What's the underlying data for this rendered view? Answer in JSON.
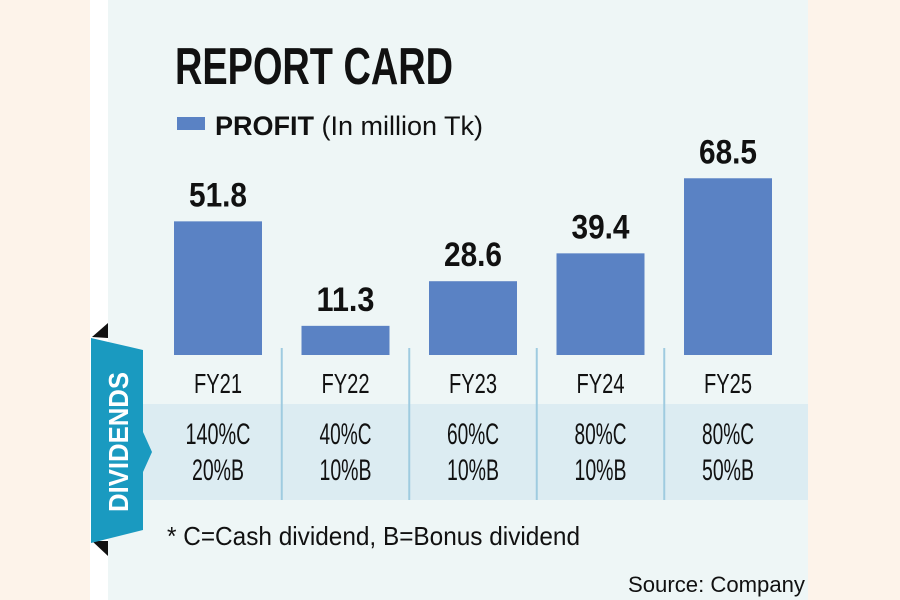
{
  "colors": {
    "bar": "#5a82c4",
    "panel": "#eef6f6",
    "band": "#dcecf2",
    "ribbon": "#1a9ac0",
    "outer": "#fdf3ea"
  },
  "chart_data": {
    "type": "bar",
    "title": "REPORT CARD",
    "legend": {
      "bold": "PROFIT",
      "rest": " (In million Tk)"
    },
    "categories": [
      "FY21",
      "FY22",
      "FY23",
      "FY24",
      "FY25"
    ],
    "series": [
      {
        "name": "PROFIT (In million Tk)",
        "values": [
          51.8,
          11.3,
          28.6,
          39.4,
          68.5
        ]
      }
    ],
    "value_labels": [
      "51.8",
      "11.3",
      "28.6",
      "39.4",
      "68.5"
    ],
    "dividends_label": "DIVIDENDS",
    "dividends": [
      {
        "cash": "140%C",
        "bonus": "20%B"
      },
      {
        "cash": "40%C",
        "bonus": "10%B"
      },
      {
        "cash": "60%C",
        "bonus": "10%B"
      },
      {
        "cash": "80%C",
        "bonus": "10%B"
      },
      {
        "cash": "80%C",
        "bonus": "50%B"
      }
    ],
    "footnote": "* C=Cash dividend, B=Bonus dividend",
    "source": "Source: Company"
  }
}
